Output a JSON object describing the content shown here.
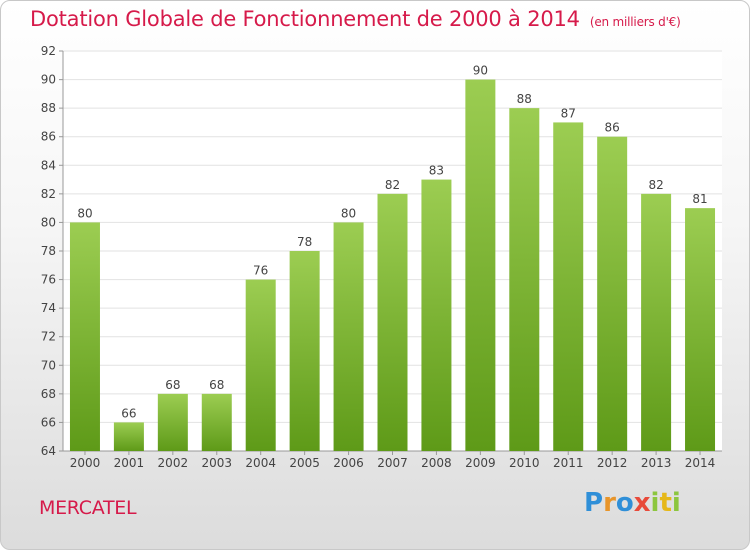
{
  "header": {
    "title": "Dotation Globale de Fonctionnement de 2000 à 2014",
    "subtitle": "(en milliers d'€)"
  },
  "footer": {
    "commune": "MERCATEL",
    "logo_text": "Proxiti"
  },
  "colors": {
    "title": "#d61a4a",
    "bar_top": "#9ccd52",
    "bar_bottom": "#5e9a18",
    "grid": "#e2e2e2"
  },
  "chart_data": {
    "type": "bar",
    "title": "Dotation Globale de Fonctionnement de 2000 à 2014",
    "subtitle": "(en milliers d'€)",
    "xlabel": "",
    "ylabel": "",
    "ylim": [
      64,
      92
    ],
    "yticks": [
      64,
      66,
      68,
      70,
      72,
      74,
      76,
      78,
      80,
      82,
      84,
      86,
      88,
      90,
      92
    ],
    "grid": true,
    "categories": [
      "2000",
      "2001",
      "2002",
      "2003",
      "2004",
      "2005",
      "2006",
      "2007",
      "2008",
      "2009",
      "2010",
      "2011",
      "2012",
      "2013",
      "2014"
    ],
    "values": [
      80,
      66,
      68,
      68,
      76,
      78,
      80,
      82,
      83,
      90,
      88,
      87,
      86,
      82,
      81
    ]
  }
}
